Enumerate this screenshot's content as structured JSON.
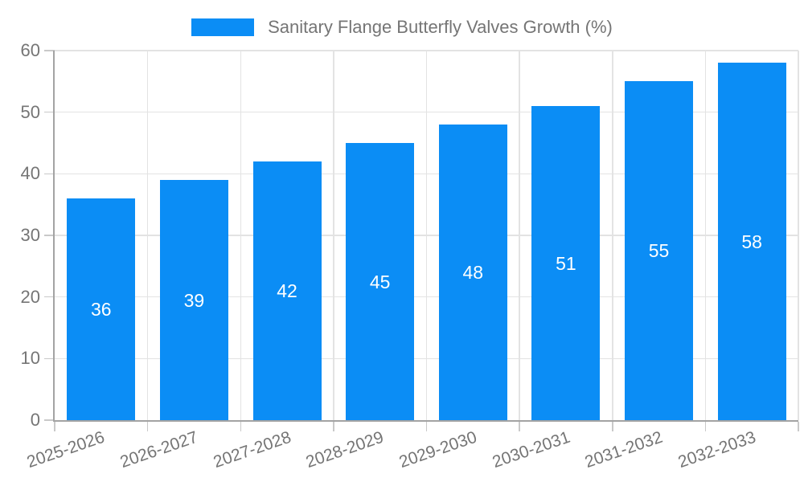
{
  "legend": {
    "items": [
      {
        "label": "Sanitary Flange Butterfly Valves Growth (%)",
        "color": "#0b8df5"
      }
    ]
  },
  "chart_data": {
    "type": "bar",
    "title": "Sanitary Flange Butterfly Valves Growth (%)",
    "categories": [
      "2025-2026",
      "2026-2027",
      "2027-2028",
      "2028-2029",
      "2029-2030",
      "2030-2031",
      "2031-2032",
      "2032-2033"
    ],
    "values": [
      36,
      39,
      42,
      45,
      48,
      51,
      55,
      58
    ],
    "xlabel": "",
    "ylabel": "",
    "ylim": [
      0,
      60
    ],
    "yticks": [
      0,
      10,
      20,
      30,
      40,
      50,
      60
    ],
    "grid": true,
    "legend_position": "top-center",
    "bar_value_labels_visible": true
  },
  "colors": {
    "bar": "#0b8df5",
    "bar_value_label": "#ffffff",
    "axis_text": "#757575",
    "legend_text": "#757575",
    "gridline": "#e3e3e3",
    "axis_line": "#a3a3a3",
    "tick": "#c9c9c9",
    "background": "#ffffff"
  }
}
